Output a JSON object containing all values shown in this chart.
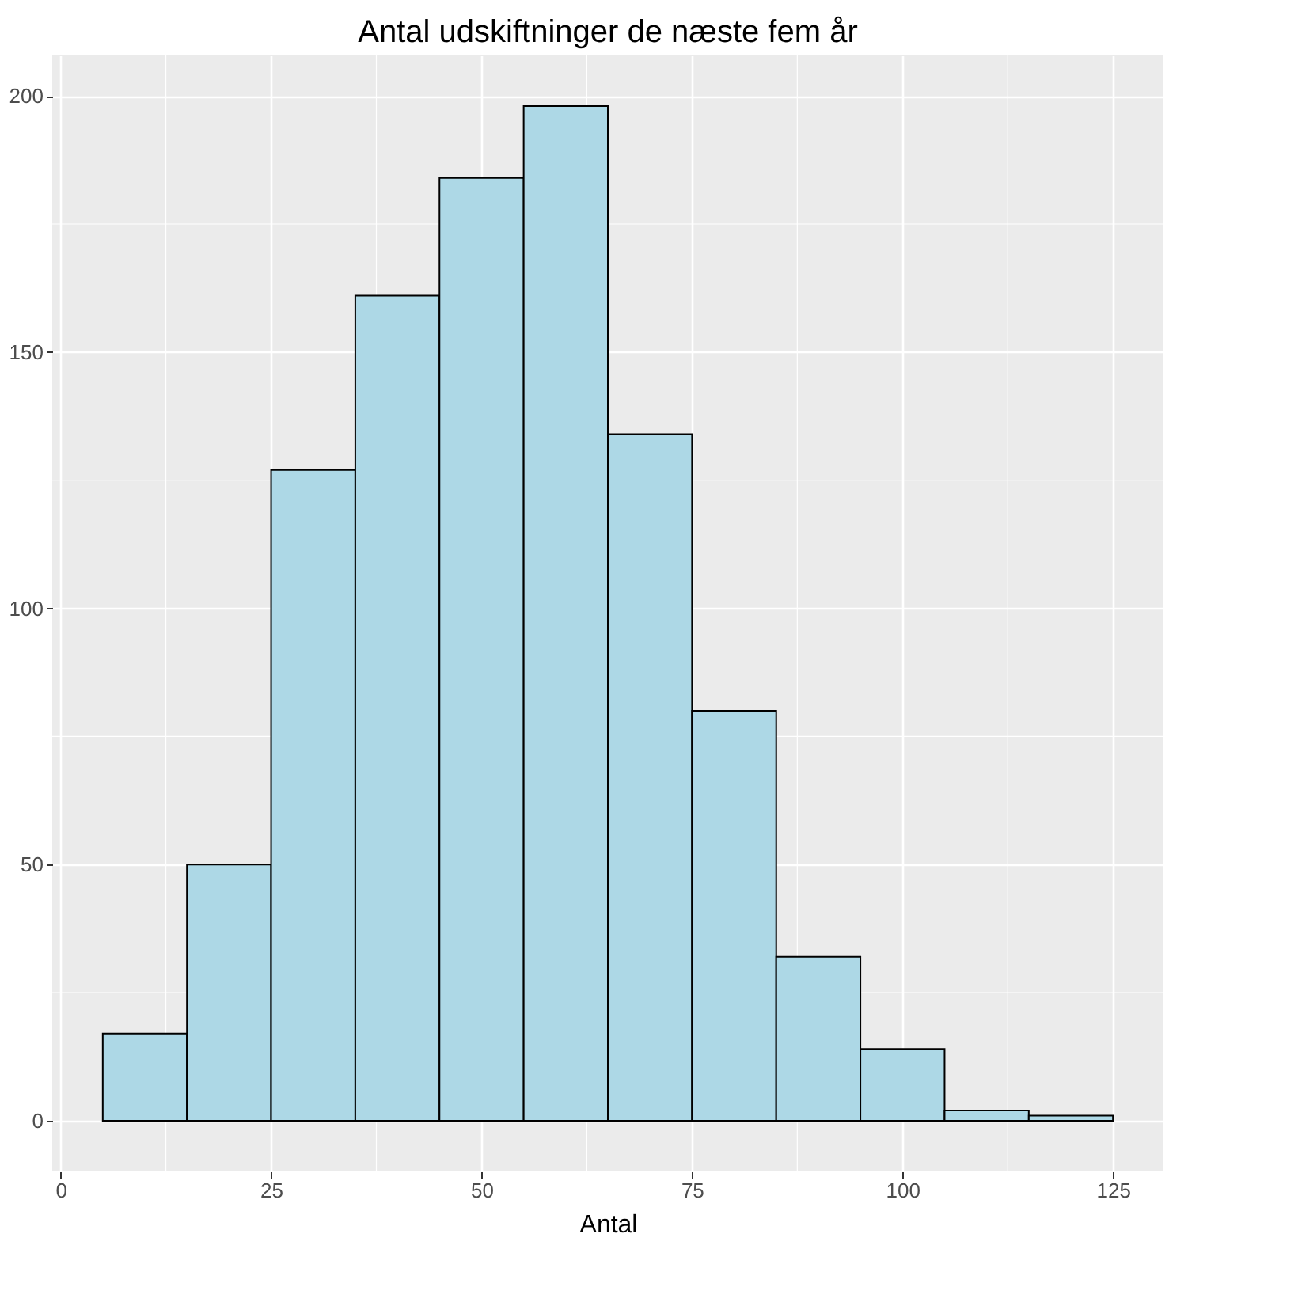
{
  "chart_data": {
    "type": "histogram",
    "title": "Antal udskiftninger de næste fem år",
    "xlabel": "Antal",
    "bins": [
      5,
      15,
      25,
      35,
      45,
      55,
      65,
      75,
      85,
      95,
      105,
      115,
      125
    ],
    "values": [
      17,
      50,
      127,
      161,
      184,
      198,
      134,
      80,
      32,
      14,
      2,
      1
    ],
    "color": "#add8e6",
    "xlim": [
      -1,
      131
    ],
    "xticks": [
      0,
      25,
      50,
      75,
      100,
      125
    ],
    "ylim": [
      -9.9,
      207.9
    ],
    "yticks": [
      0,
      50,
      100,
      150,
      200
    ],
    "grid": true
  }
}
